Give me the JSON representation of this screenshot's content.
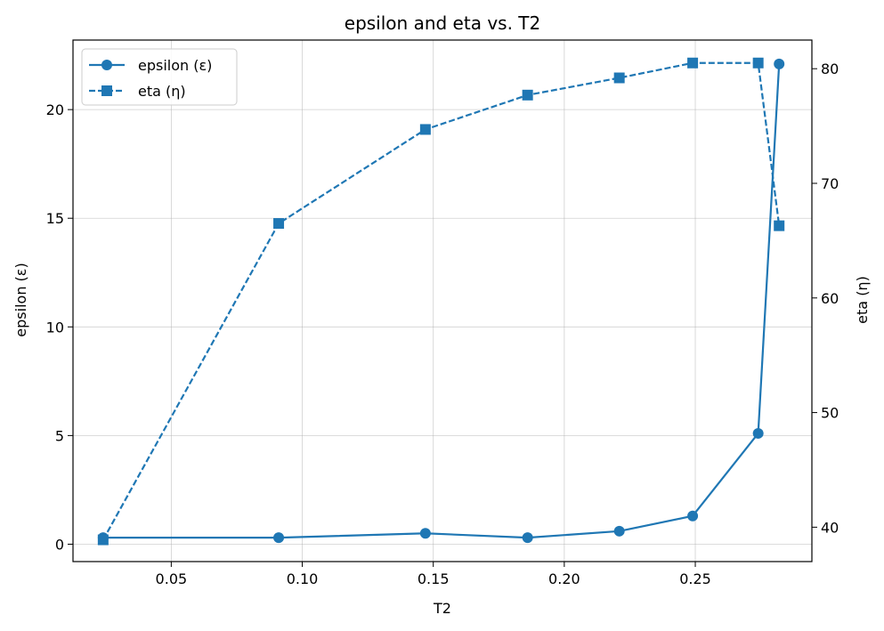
{
  "chart_data": {
    "type": "line",
    "title": "epsilon and eta vs. T2",
    "xlabel": "T2",
    "ylabel_left": "epsilon (ε)",
    "ylabel_right": "eta (η)",
    "x": [
      0.024,
      0.091,
      0.147,
      0.186,
      0.221,
      0.249,
      0.274,
      0.282
    ],
    "xlim": [
      0.0125,
      0.2945
    ],
    "ylim_left": [
      -0.8,
      23.2
    ],
    "ylim_right": [
      37,
      82.5
    ],
    "xticks": [
      0.05,
      0.1,
      0.15,
      0.2,
      0.25
    ],
    "xtick_labels": [
      "0.05",
      "0.10",
      "0.15",
      "0.20",
      "0.25"
    ],
    "yticks_left": [
      0,
      5,
      10,
      15,
      20
    ],
    "ytick_labels_left": [
      "0",
      "5",
      "10",
      "15",
      "20"
    ],
    "yticks_right": [
      40,
      50,
      60,
      70,
      80
    ],
    "ytick_labels_right": [
      "40",
      "50",
      "60",
      "70",
      "80"
    ],
    "grid": true,
    "legend_position": "top-left",
    "series": [
      {
        "name": "epsilon (ε)",
        "axis": "left",
        "marker": "circle",
        "linestyle": "solid",
        "color": "#1f77b4",
        "values": [
          0.3,
          0.3,
          0.5,
          0.3,
          0.6,
          1.3,
          5.1,
          22.1
        ]
      },
      {
        "name": "eta (η)",
        "axis": "right",
        "marker": "square",
        "linestyle": "dashed",
        "color": "#1f77b4",
        "values": [
          38.9,
          66.5,
          74.7,
          77.7,
          79.2,
          80.5,
          80.5,
          66.3
        ]
      }
    ]
  }
}
